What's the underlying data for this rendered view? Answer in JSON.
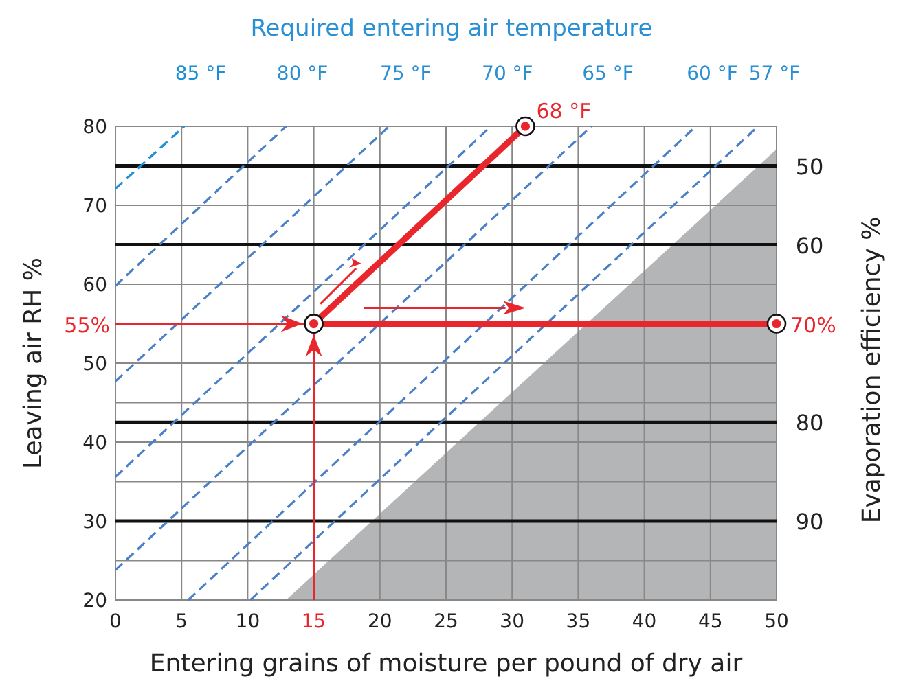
{
  "chart_data": {
    "type": "line",
    "x2label": "Required entering air temperature",
    "xlabel": "Entering grains of moisture per pound of dry air",
    "ylabel": "Leaving air RH %",
    "y2label": "Evaporation efficiency %",
    "xlim": [
      0,
      50
    ],
    "xticks": [
      0,
      5,
      10,
      15,
      20,
      25,
      30,
      35,
      40,
      45,
      50
    ],
    "ylim": [
      20,
      80
    ],
    "yticks": [
      20,
      {
        "value": 25,
        "label": null
      },
      30,
      {
        "value": 35,
        "label": null
      },
      40,
      {
        "value": 45,
        "label": null
      },
      50,
      {
        "value": 55,
        "label": null
      },
      60,
      {
        "value": 65,
        "label": null
      },
      70,
      {
        "value": 75,
        "label": null
      },
      80
    ],
    "grid": true,
    "legend": false,
    "series": [
      {
        "type": "area",
        "color": "#b4b5b7",
        "x": [
          12.9,
          50
        ],
        "values": [
          20,
          77.1
        ]
      },
      {
        "name": "50",
        "color": "#111111",
        "line_style": "solid",
        "x": [
          0,
          50
        ],
        "values": [
          75,
          75
        ]
      },
      {
        "name": "60",
        "color": "#111111",
        "line_style": "solid",
        "x": [
          0,
          50
        ],
        "values": [
          65,
          65
        ]
      },
      {
        "name": "80",
        "color": "#111111",
        "line_style": "solid",
        "x": [
          0,
          50
        ],
        "values": [
          42.5,
          42.5
        ]
      },
      {
        "name": "90",
        "color": "#111111",
        "line_style": "solid",
        "x": [
          0,
          50
        ],
        "values": [
          30,
          30
        ]
      },
      {
        "name": "85 °F",
        "color": "#1a8fd6",
        "line_style": "dashed",
        "x": [
          0,
          5.2
        ],
        "values": [
          72.1,
          80
        ]
      },
      {
        "name": "80 °F",
        "color": "#4a80c8",
        "line_style": "dashed",
        "x": [
          0,
          12.9
        ],
        "values": [
          59.8,
          80
        ]
      },
      {
        "name": "75 °F",
        "color": "#4a80c8",
        "line_style": "dashed",
        "x": [
          0,
          20.7
        ],
        "values": [
          47.7,
          80
        ]
      },
      {
        "name": "70 °F",
        "color": "#4a80c8",
        "line_style": "dashed",
        "x": [
          0,
          28.4
        ],
        "values": [
          35.6,
          80
        ]
      },
      {
        "name": "65 °F",
        "color": "#4a80c8",
        "line_style": "dashed",
        "x": [
          0,
          36
        ],
        "values": [
          23.8,
          80
        ]
      },
      {
        "name": "60 °F",
        "color": "#4a80c8",
        "line_style": "dashed",
        "x": [
          5.5,
          43.9
        ],
        "values": [
          20,
          80
        ]
      },
      {
        "name": "57 °F",
        "color": "#4a80c8",
        "line_style": "dashed",
        "x": [
          10.2,
          48.6
        ],
        "values": [
          20,
          80
        ]
      },
      {
        "color": "#e8262b",
        "line_style": "solid",
        "x": [
          0,
          15
        ],
        "values": [
          55,
          55
        ]
      },
      {
        "color": "#e8262b",
        "line_style": "solid",
        "x": [
          15,
          15
        ],
        "values": [
          20,
          55
        ]
      },
      {
        "color": "#e8262b",
        "line_style": "solid",
        "marker": "circle",
        "x": [
          15,
          31
        ],
        "values": [
          55,
          80
        ]
      },
      {
        "color": "#e8262b",
        "line_style": "solid",
        "marker": "circle",
        "x": [
          15,
          50
        ],
        "values": [
          55,
          55
        ]
      }
    ],
    "annotations": [
      {
        "text": "55%",
        "x": 0,
        "y": 55
      },
      {
        "text": "68 °F",
        "x": 31,
        "y": 80
      },
      {
        "text": "70%",
        "x": 50,
        "y": 55
      }
    ]
  }
}
